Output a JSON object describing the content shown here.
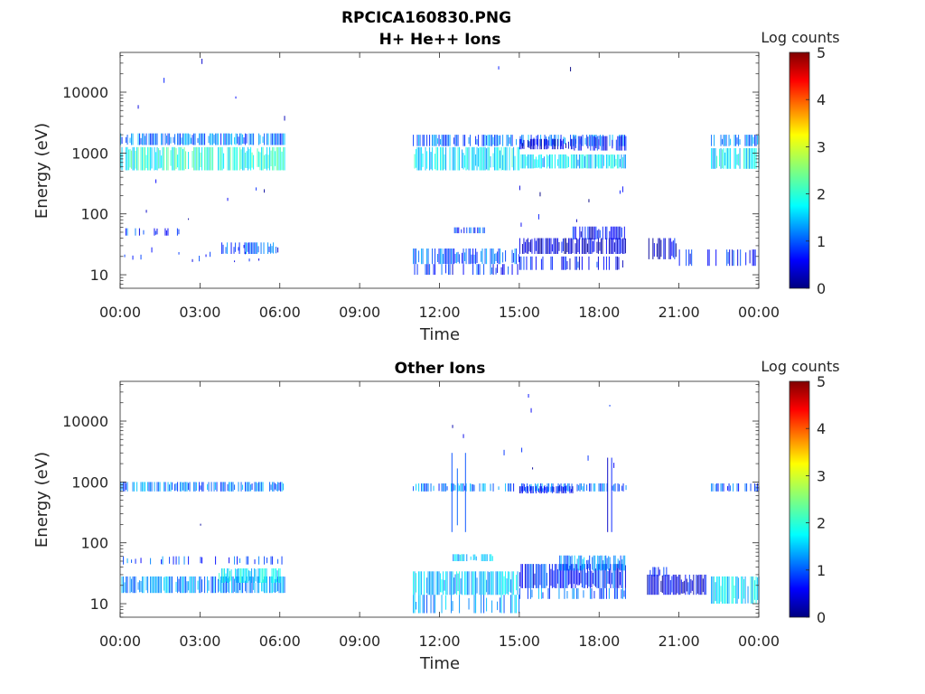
{
  "figure": {
    "title_line1": "RPCICA160830.PNG"
  },
  "chart_data": [
    {
      "type": "heatmap",
      "title": "H+ He++ Ions",
      "xlabel": "Time",
      "ylabel": "Energy (eV)",
      "x_ticks": [
        "00:00",
        "03:00",
        "06:00",
        "09:00",
        "12:00",
        "15:00",
        "18:00",
        "21:00",
        "00:00"
      ],
      "x_range_hours": [
        0,
        24
      ],
      "y_scale": "log",
      "y_ticks": [
        "10",
        "100",
        "1000",
        "10000"
      ],
      "y_range": [
        6,
        45000
      ],
      "colorbar": {
        "label": "Log counts",
        "ticks": [
          "0",
          "1",
          "2",
          "3",
          "4",
          "5"
        ],
        "range": [
          0,
          5
        ],
        "colormap": "jet"
      },
      "bands": [
        {
          "t": [
            0.0,
            6.2
          ],
          "e": [
            1350,
            2100
          ],
          "level": 1.2,
          "density": 0.75
        },
        {
          "t": [
            0.0,
            6.2
          ],
          "e": [
            520,
            1250
          ],
          "level": 2.0,
          "density": 0.85
        },
        {
          "t": [
            0.0,
            6.2
          ],
          "e": [
            2500,
            40000
          ],
          "level": 0.4,
          "density": 0.05
        },
        {
          "t": [
            0.0,
            6.2
          ],
          "e": [
            75,
            450
          ],
          "level": 0.4,
          "density": 0.04
        },
        {
          "t": [
            0.2,
            2.2
          ],
          "e": [
            44,
            58
          ],
          "level": 0.9,
          "density": 0.35
        },
        {
          "t": [
            0.0,
            6.2
          ],
          "e": [
            16,
            32
          ],
          "level": 0.6,
          "density": 0.12
        },
        {
          "t": [
            3.7,
            6.0
          ],
          "e": [
            22,
            34
          ],
          "level": 1.1,
          "density": 0.55
        },
        {
          "t": [
            11.0,
            19.0
          ],
          "e": [
            1300,
            2000
          ],
          "level": 1.2,
          "density": 0.65
        },
        {
          "t": [
            11.0,
            15.0
          ],
          "e": [
            520,
            1250
          ],
          "level": 1.8,
          "density": 0.85
        },
        {
          "t": [
            15.0,
            19.0
          ],
          "e": [
            560,
            950
          ],
          "level": 1.7,
          "density": 0.9
        },
        {
          "t": [
            15.0,
            17.0
          ],
          "e": [
            1150,
            1700
          ],
          "level": 0.5,
          "density": 0.8
        },
        {
          "t": [
            17.0,
            19.0
          ],
          "e": [
            1100,
            1900
          ],
          "level": 0.7,
          "density": 0.55
        },
        {
          "t": [
            11.0,
            19.0
          ],
          "e": [
            2500,
            30000
          ],
          "level": 0.4,
          "density": 0.05
        },
        {
          "t": [
            15.0,
            19.0
          ],
          "e": [
            60,
            450
          ],
          "level": 0.3,
          "density": 0.08
        },
        {
          "t": [
            11.0,
            15.0
          ],
          "e": [
            15,
            27
          ],
          "level": 1.1,
          "density": 0.7
        },
        {
          "t": [
            11.0,
            15.0
          ],
          "e": [
            10,
            15
          ],
          "level": 0.8,
          "density": 0.45
        },
        {
          "t": [
            12.5,
            14.0
          ],
          "e": [
            48,
            60
          ],
          "level": 0.9,
          "density": 0.5
        },
        {
          "t": [
            15.0,
            19.0
          ],
          "e": [
            22,
            40
          ],
          "level": 0.4,
          "density": 0.9
        },
        {
          "t": [
            17.0,
            19.0
          ],
          "e": [
            38,
            62
          ],
          "level": 0.6,
          "density": 0.8
        },
        {
          "t": [
            15.0,
            19.0
          ],
          "e": [
            12,
            20
          ],
          "level": 0.6,
          "density": 0.4
        },
        {
          "t": [
            19.8,
            21.0
          ],
          "e": [
            18,
            40
          ],
          "level": 0.5,
          "density": 0.55
        },
        {
          "t": [
            21.0,
            24.0
          ],
          "e": [
            14,
            26
          ],
          "level": 0.8,
          "density": 0.3
        },
        {
          "t": [
            22.2,
            24.0
          ],
          "e": [
            1300,
            2000
          ],
          "level": 1.2,
          "density": 0.7
        },
        {
          "t": [
            22.2,
            24.0
          ],
          "e": [
            550,
            1200
          ],
          "level": 1.8,
          "density": 0.85
        }
      ]
    },
    {
      "type": "heatmap",
      "title": "Other Ions",
      "xlabel": "Time",
      "ylabel": "Energy (eV)",
      "x_ticks": [
        "00:00",
        "03:00",
        "06:00",
        "09:00",
        "12:00",
        "15:00",
        "18:00",
        "21:00",
        "00:00"
      ],
      "x_range_hours": [
        0,
        24
      ],
      "y_scale": "log",
      "y_ticks": [
        "10",
        "100",
        "1000",
        "10000"
      ],
      "y_range": [
        6,
        45000
      ],
      "colorbar": {
        "label": "Log counts",
        "ticks": [
          "0",
          "1",
          "2",
          "3",
          "4",
          "5"
        ],
        "range": [
          0,
          5
        ],
        "colormap": "jet"
      },
      "bands": [
        {
          "t": [
            0.0,
            6.2
          ],
          "e": [
            700,
            1000
          ],
          "level": 1.2,
          "density": 0.7
        },
        {
          "t": [
            0.0,
            6.2
          ],
          "e": [
            44,
            60
          ],
          "level": 1.0,
          "density": 0.3
        },
        {
          "t": [
            0.0,
            6.2
          ],
          "e": [
            15,
            28
          ],
          "level": 1.3,
          "density": 0.85
        },
        {
          "t": [
            3.7,
            6.0
          ],
          "e": [
            22,
            38
          ],
          "level": 1.8,
          "density": 0.8
        },
        {
          "t": [
            0.0,
            6.2
          ],
          "e": [
            80,
            500
          ],
          "level": 0.5,
          "density": 0.02
        },
        {
          "t": [
            11.0,
            19.0
          ],
          "e": [
            700,
            950
          ],
          "level": 1.2,
          "density": 0.65
        },
        {
          "t": [
            15.0,
            17.0
          ],
          "e": [
            650,
            850
          ],
          "level": 0.7,
          "density": 0.7
        },
        {
          "t": [
            12.3,
            13.0
          ],
          "e": [
            150,
            3000
          ],
          "level": 0.9,
          "density": 0.3
        },
        {
          "t": [
            18.3,
            18.9
          ],
          "e": [
            150,
            2500
          ],
          "level": 0.8,
          "density": 0.3
        },
        {
          "t": [
            11.0,
            19.0
          ],
          "e": [
            1500,
            30000
          ],
          "level": 0.5,
          "density": 0.03
        },
        {
          "t": [
            12.5,
            14.0
          ],
          "e": [
            50,
            65
          ],
          "level": 1.6,
          "density": 0.6
        },
        {
          "t": [
            11.0,
            15.0
          ],
          "e": [
            14,
            34
          ],
          "level": 1.6,
          "density": 0.85
        },
        {
          "t": [
            11.0,
            15.0
          ],
          "e": [
            7,
            14
          ],
          "level": 1.4,
          "density": 0.4
        },
        {
          "t": [
            15.0,
            19.0
          ],
          "e": [
            18,
            45
          ],
          "level": 0.8,
          "density": 0.9
        },
        {
          "t": [
            16.5,
            19.0
          ],
          "e": [
            35,
            62
          ],
          "level": 1.3,
          "density": 0.8
        },
        {
          "t": [
            15.0,
            19.0
          ],
          "e": [
            12,
            18
          ],
          "level": 1.2,
          "density": 0.5
        },
        {
          "t": [
            19.8,
            22.0
          ],
          "e": [
            14,
            30
          ],
          "level": 0.5,
          "density": 0.95
        },
        {
          "t": [
            19.8,
            20.6
          ],
          "e": [
            28,
            40
          ],
          "level": 0.6,
          "density": 0.7
        },
        {
          "t": [
            22.2,
            24.0
          ],
          "e": [
            700,
            950
          ],
          "level": 1.0,
          "density": 0.55
        },
        {
          "t": [
            22.2,
            24.0
          ],
          "e": [
            10,
            28
          ],
          "level": 1.7,
          "density": 0.8
        }
      ]
    }
  ]
}
